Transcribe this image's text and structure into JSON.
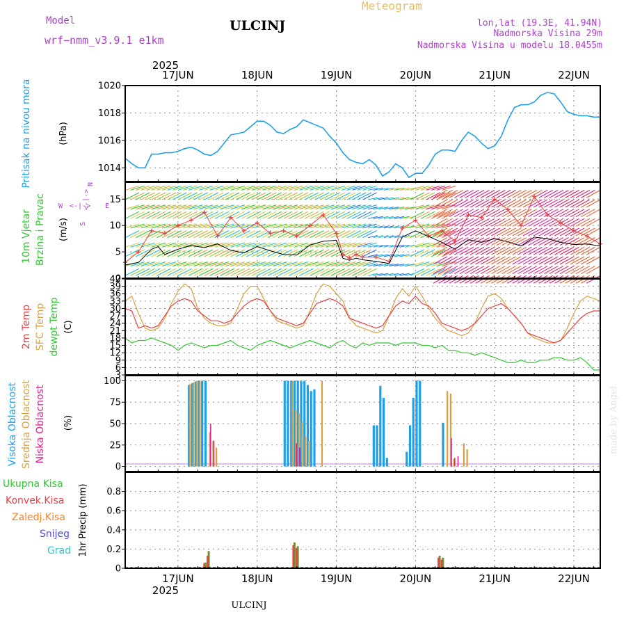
{
  "header": {
    "model_label": "Model",
    "model_name": "wrf−nmm_v3.9.1  e1km",
    "station": "ULCINJ",
    "product": "Meteogram",
    "coords": "lon,lat (19.3E, 41.94N)",
    "elevation": "Nadmorska Visina 29m",
    "model_elevation": "Nadmorska Visina u modelu 18.0455m",
    "footer_station": "ULCINJ",
    "credit": "made by Angel"
  },
  "colors": {
    "pressure": "#1ea0e8",
    "temp2m": "#e84040",
    "sfc_temp": "#d8a040",
    "dewpt": "#30c830",
    "cloud_high": "#1ea0e8",
    "cloud_mid": "#d8a040",
    "cloud_low": "#e0208c",
    "precip_total": "#30c830",
    "precip_conv": "#e84040",
    "precip_frz": "#ff7f1e",
    "snow": "#5050e0",
    "hail": "#30c8c8",
    "wind_title": "#30c830",
    "header_purple": "#b040d0",
    "header_gold": "#e8c060"
  },
  "axes": {
    "year": "2025",
    "days": [
      "17JUN",
      "18JUN",
      "19JUN",
      "20JUN",
      "21JUN",
      "22JUN"
    ],
    "x_hour_start": 0,
    "x_hour_end": 144,
    "day_ticks_hours": [
      16,
      40,
      64,
      88,
      112,
      136
    ]
  },
  "panels": {
    "pressure": {
      "title": "Pritisak na nivou mora",
      "unit": "(hPa)",
      "ylim": [
        1013,
        1020
      ],
      "ticks": [
        "1014",
        "1016",
        "1018",
        "1020"
      ],
      "tick_values": [
        1014,
        1016,
        1018,
        1020
      ]
    },
    "wind": {
      "title1": "10m Vjetar",
      "title2": "Brzina i Pravac",
      "unit": "(m/s)",
      "ylim": [
        0,
        18.2
      ],
      "ticks": [
        "0",
        "5",
        "10",
        "15"
      ],
      "tick_values": [
        0,
        5,
        10,
        15
      ],
      "compass": {
        "n": "N",
        "s": "S",
        "w": "W",
        "e": "E",
        "arrow": "<-|->"
      }
    },
    "temperature": {
      "title1": "2m Temp",
      "title2": "SFC Temp",
      "title3": "dewpt Temp",
      "unit": "(C)",
      "ylim": [
        3,
        42
      ],
      "ticks": [
        "3",
        "6",
        "9",
        "12",
        "15",
        "18",
        "21",
        "24",
        "27",
        "30",
        "33",
        "36",
        "39",
        "42"
      ],
      "tick_values": [
        3,
        6,
        9,
        12,
        15,
        18,
        21,
        24,
        27,
        30,
        33,
        36,
        39,
        42
      ]
    },
    "clouds": {
      "title1": "Visoka Oblacnost",
      "title2": "Srednja Oblacnost",
      "title3": "Niska Oblacnost",
      "unit": "(%)",
      "ylim": [
        -6,
        106
      ],
      "ticks": [
        "0",
        "25",
        "50",
        "75",
        "100"
      ],
      "tick_values": [
        0,
        25,
        50,
        75,
        100
      ]
    },
    "precip": {
      "legend": [
        "Ukupna Kisa",
        "Konvek.Kisa",
        "Zaledj.Kisa",
        "Snijeg",
        "Grad"
      ],
      "unit": "1hr Precip (mm)",
      "ylim": [
        0,
        1
      ],
      "ticks": [
        "0",
        "0.2",
        "0.4",
        "0.6",
        "0.8"
      ],
      "tick_values": [
        0,
        0.2,
        0.4,
        0.6,
        0.8
      ]
    }
  },
  "chart_data": [
    {
      "type": "line",
      "name": "pressure",
      "x_units": "forecast hour",
      "series": [
        {
          "name": "Pritisak na nivou mora",
          "x": [
            0,
            2,
            4,
            6,
            8,
            10,
            12,
            14,
            16,
            18,
            20,
            22,
            24,
            26,
            28,
            30,
            32,
            34,
            36,
            38,
            40,
            42,
            44,
            46,
            48,
            50,
            52,
            54,
            56,
            58,
            60,
            62,
            64,
            66,
            68,
            70,
            72,
            74,
            76,
            78,
            80,
            82,
            84,
            86,
            88,
            90,
            92,
            94,
            96,
            98,
            100,
            102,
            104,
            106,
            108,
            110,
            112,
            114,
            116,
            118,
            120,
            122,
            124,
            126,
            128,
            130,
            132,
            134,
            136,
            138,
            140,
            142,
            144
          ],
          "values": [
            1014.7,
            1014.3,
            1014.0,
            1014.0,
            1015.0,
            1015.0,
            1015.1,
            1015.1,
            1015.2,
            1015.4,
            1015.5,
            1015.3,
            1015.0,
            1014.9,
            1015.2,
            1015.8,
            1016.4,
            1016.5,
            1016.6,
            1017.0,
            1017.4,
            1017.4,
            1017.1,
            1016.6,
            1016.5,
            1016.8,
            1017.0,
            1017.5,
            1017.3,
            1017.1,
            1016.9,
            1016.3,
            1015.8,
            1015.1,
            1014.6,
            1014.4,
            1014.3,
            1014.6,
            1014.2,
            1013.4,
            1013.7,
            1014.3,
            1014.0,
            1013.3,
            1013.6,
            1013.6,
            1014.2,
            1015.0,
            1015.3,
            1015.3,
            1015.2,
            1016.0,
            1016.6,
            1016.3,
            1015.8,
            1015.4,
            1015.6,
            1016.3,
            1017.5,
            1018.4,
            1018.6,
            1018.6,
            1018.8,
            1019.3,
            1019.5,
            1019.4,
            1018.8,
            1018.1,
            1017.9,
            1017.8,
            1017.8,
            1017.7,
            1017.7
          ]
        }
      ]
    },
    {
      "type": "line",
      "name": "wind",
      "x_units": "forecast hour",
      "series": [
        {
          "name": "wind speed",
          "x": [
            0,
            4,
            8,
            10,
            12,
            16,
            20,
            24,
            28,
            32,
            36,
            40,
            44,
            48,
            52,
            56,
            60,
            64,
            66,
            68,
            70,
            72,
            76,
            80,
            84,
            88,
            92,
            96,
            100,
            104,
            108,
            112,
            116,
            120,
            124,
            128,
            132,
            136,
            140,
            144
          ],
          "values": [
            2.5,
            3.0,
            5.5,
            6.0,
            4.5,
            5.5,
            6.2,
            5.8,
            6.5,
            5.3,
            4.8,
            6.0,
            5.2,
            4.5,
            4.4,
            6.3,
            7.0,
            7.2,
            3.8,
            3.4,
            3.8,
            3.5,
            3.2,
            2.8,
            7.8,
            9.0,
            7.9,
            6.8,
            5.5,
            7.3,
            6.8,
            7.5,
            6.9,
            6.1,
            7.8,
            7.5,
            6.8,
            6.4,
            6.5,
            6.1
          ]
        },
        {
          "name": "wind gust",
          "x": [
            0,
            4,
            8,
            12,
            16,
            20,
            24,
            28,
            32,
            36,
            40,
            44,
            48,
            52,
            56,
            60,
            64,
            66,
            68,
            70,
            72,
            76,
            80,
            84,
            88,
            92,
            96,
            100,
            104,
            108,
            112,
            116,
            120,
            124,
            128,
            132,
            136,
            140,
            144
          ],
          "values": [
            3.0,
            5.0,
            9.0,
            8.5,
            10.0,
            11.0,
            12.5,
            8.0,
            11.5,
            9.0,
            10.5,
            8.5,
            9.0,
            8.0,
            10.0,
            12.0,
            8.5,
            4.5,
            3.8,
            4.5,
            4.0,
            4.0,
            3.2,
            9.5,
            11.0,
            8.0,
            9.0,
            7.0,
            12.0,
            11.5,
            15.0,
            13.0,
            10.0,
            15.5,
            12.0,
            10.5,
            9.0,
            8.0,
            6.5
          ]
        }
      ]
    },
    {
      "type": "line",
      "name": "temperature",
      "x_units": "forecast hour",
      "series": [
        {
          "name": "2m Temp",
          "x": [
            0,
            2,
            4,
            6,
            8,
            10,
            12,
            14,
            16,
            18,
            20,
            22,
            24,
            26,
            28,
            30,
            32,
            34,
            36,
            38,
            40,
            42,
            44,
            46,
            48,
            50,
            52,
            54,
            56,
            58,
            60,
            62,
            64,
            66,
            68,
            70,
            72,
            74,
            76,
            78,
            80,
            82,
            84,
            86,
            88,
            90,
            92,
            94,
            96,
            98,
            100,
            102,
            104,
            106,
            108,
            110,
            112,
            114,
            116,
            118,
            120,
            122,
            124,
            126,
            128,
            130,
            132,
            134,
            136,
            138,
            140,
            142,
            144
          ],
          "values": [
            30,
            29,
            22,
            23,
            22,
            23,
            27,
            31,
            33,
            34,
            33,
            29,
            27,
            25,
            25,
            24,
            25,
            28,
            31,
            33,
            34,
            33,
            29,
            26,
            25,
            24,
            23,
            24,
            28,
            32,
            33,
            34,
            33,
            31,
            26,
            25,
            24,
            23,
            22,
            23,
            27,
            31,
            33,
            32,
            35,
            32,
            31,
            28,
            24,
            23,
            22,
            21,
            22,
            24,
            27,
            30,
            31,
            32,
            30,
            27,
            24,
            20,
            19,
            18,
            17,
            16,
            17,
            20,
            23,
            26,
            28,
            29,
            29
          ]
        },
        {
          "name": "SFC Temp",
          "x": [
            0,
            2,
            4,
            6,
            8,
            10,
            12,
            14,
            16,
            18,
            20,
            22,
            24,
            26,
            28,
            30,
            32,
            34,
            36,
            38,
            40,
            42,
            44,
            46,
            48,
            50,
            52,
            54,
            56,
            58,
            60,
            62,
            64,
            66,
            68,
            70,
            72,
            74,
            76,
            78,
            80,
            82,
            84,
            86,
            88,
            90,
            92,
            94,
            96,
            98,
            100,
            102,
            104,
            106,
            108,
            110,
            112,
            114,
            116,
            118,
            120,
            122,
            124,
            126,
            128,
            130,
            132,
            134,
            136,
            138,
            140,
            142,
            144
          ],
          "values": [
            33,
            35,
            28,
            22,
            21,
            22,
            26,
            32,
            37,
            40,
            38,
            30,
            26,
            24,
            23,
            23,
            24,
            30,
            36,
            39,
            39,
            34,
            29,
            25,
            24,
            23,
            22,
            23,
            29,
            36,
            40,
            39,
            36,
            33,
            26,
            23,
            22,
            21,
            20,
            21,
            27,
            34,
            38,
            35,
            39,
            35,
            30,
            26,
            23,
            21,
            20,
            19,
            20,
            24,
            30,
            35,
            36,
            34,
            30,
            27,
            24,
            20,
            18,
            17,
            16,
            16,
            17,
            22,
            28,
            33,
            35,
            34,
            33
          ]
        },
        {
          "name": "dewpt Temp",
          "x": [
            0,
            2,
            4,
            6,
            8,
            10,
            12,
            14,
            16,
            18,
            20,
            22,
            24,
            26,
            28,
            30,
            32,
            34,
            36,
            38,
            40,
            42,
            44,
            46,
            48,
            50,
            52,
            54,
            56,
            58,
            60,
            62,
            64,
            66,
            68,
            70,
            72,
            74,
            76,
            78,
            80,
            82,
            84,
            86,
            88,
            90,
            92,
            94,
            96,
            98,
            100,
            102,
            104,
            106,
            108,
            110,
            112,
            114,
            116,
            118,
            120,
            122,
            124,
            126,
            128,
            130,
            132,
            134,
            136,
            138,
            140,
            142,
            144
          ],
          "values": [
            18,
            16,
            17,
            17,
            18,
            17,
            16,
            15,
            13,
            15,
            16,
            15,
            14,
            15,
            15,
            16,
            17,
            15,
            14,
            13,
            15,
            16,
            17,
            16,
            15,
            14,
            15,
            16,
            17,
            16,
            15,
            14,
            16,
            17,
            15,
            14,
            16,
            15,
            16,
            16,
            16,
            15,
            16,
            16,
            16,
            15,
            15,
            14,
            15,
            13,
            13,
            12,
            12,
            11,
            12,
            11,
            10,
            9,
            8,
            8,
            9,
            8,
            8,
            9,
            9,
            10,
            10,
            9,
            9,
            10,
            8,
            5,
            5
          ]
        }
      ]
    },
    {
      "type": "bar",
      "name": "clouds",
      "x_units": "forecast hour",
      "series": [
        {
          "name": "Visoka Oblacnost",
          "x": [
            19,
            20,
            21,
            22,
            23,
            24,
            48,
            49,
            50,
            51,
            52,
            53,
            54,
            55,
            56,
            57,
            58,
            75,
            76,
            77,
            78,
            79,
            85,
            86,
            87,
            88,
            89,
            90,
            96
          ],
          "values": [
            95,
            97,
            99,
            100,
            100,
            100,
            100,
            100,
            100,
            100,
            100,
            100,
            100,
            95,
            88,
            90,
            0,
            48,
            48,
            94,
            80,
            10,
            17,
            48,
            80,
            100,
            100,
            0,
            51
          ]
        },
        {
          "name": "Srednja Oblacnost",
          "x": [
            19,
            20,
            21,
            22,
            25,
            26,
            27,
            50,
            51,
            52,
            53,
            54,
            55,
            59,
            97,
            98,
            99,
            102,
            103
          ],
          "values": [
            96,
            98,
            100,
            100,
            40,
            30,
            22,
            100,
            66,
            62,
            53,
            35,
            30,
            100,
            88,
            85,
            9,
            27,
            20
          ]
        },
        {
          "name": "Niska Oblacnost",
          "x": [
            25,
            26,
            51,
            52,
            98,
            99,
            100
          ],
          "values": [
            50,
            30,
            27,
            22,
            33,
            10,
            12
          ]
        }
      ]
    },
    {
      "type": "bar",
      "name": "precip",
      "x_units": "forecast hour",
      "series": [
        {
          "name": "Ukupna Kisa",
          "x": [
            24,
            25,
            51,
            52,
            95,
            96
          ],
          "values": [
            0.06,
            0.18,
            0.27,
            0.23,
            0.13,
            0.11
          ]
        },
        {
          "name": "Konvek.Kisa",
          "x": [
            24,
            25,
            51,
            52,
            95,
            96
          ],
          "values": [
            0.05,
            0.13,
            0.24,
            0.21,
            0.11,
            0.09
          ]
        }
      ]
    }
  ]
}
